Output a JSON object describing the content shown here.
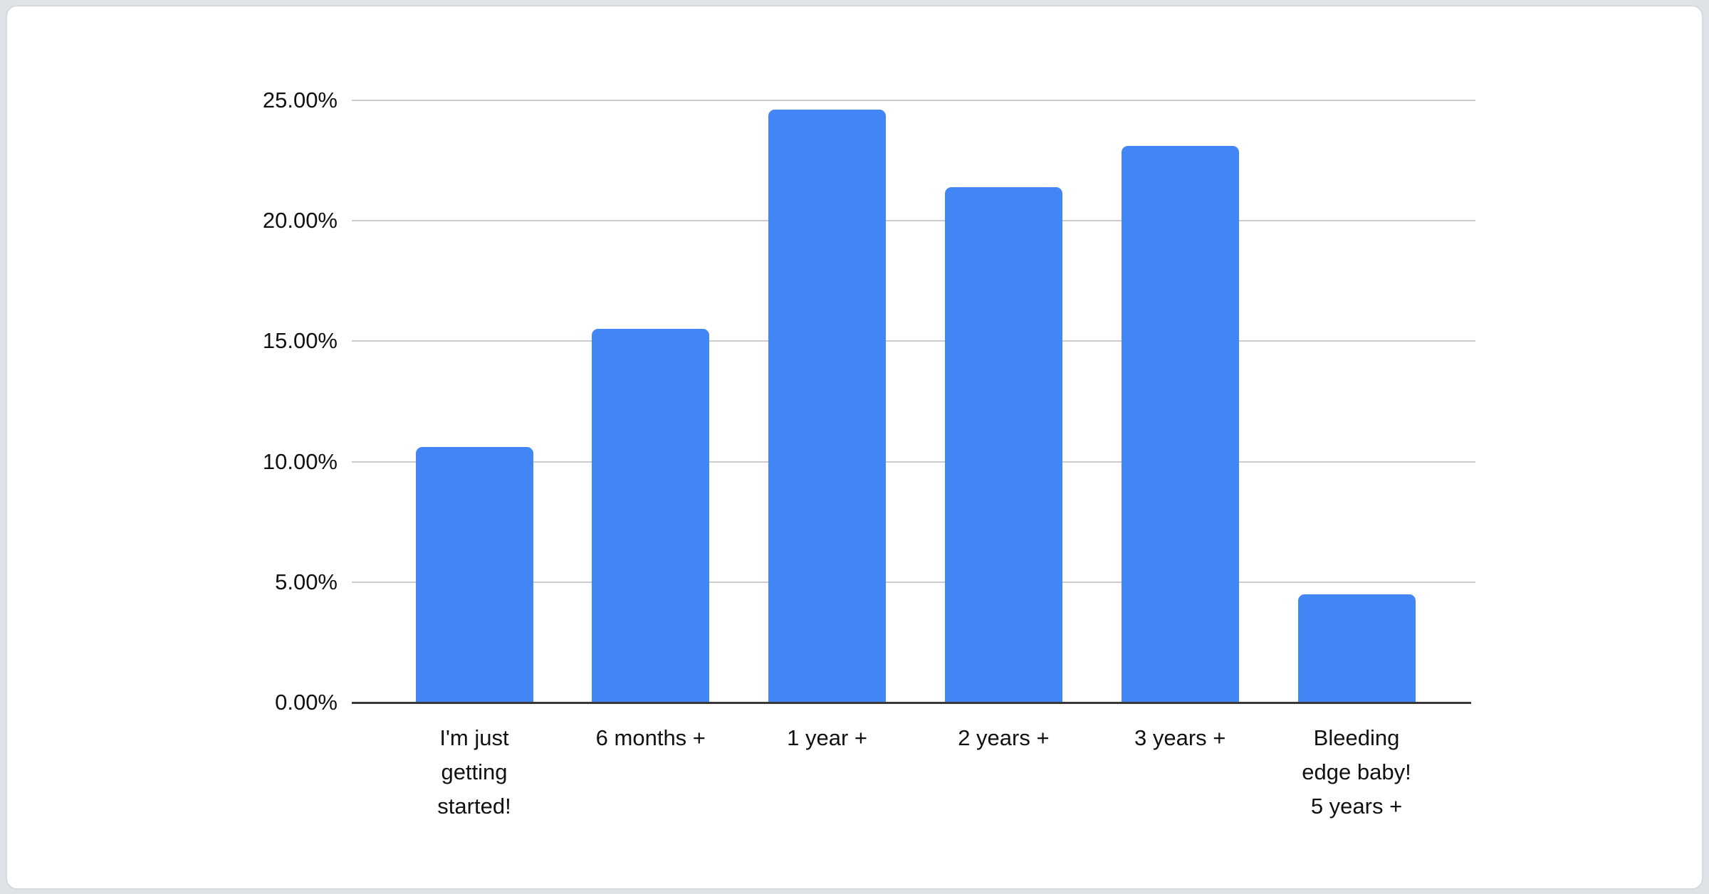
{
  "page": {
    "background_color": "#dfe2e6",
    "card_background_color": "#ffffff",
    "card_border_color": "#d6d9dd"
  },
  "chart_data": {
    "type": "bar",
    "title": "",
    "xlabel": "",
    "ylabel": "",
    "legend": "none",
    "grid": true,
    "categories": [
      "I'm just getting started!",
      "6 months +",
      "1 year +",
      "2 years +",
      "3 years +",
      "Bleeding edge baby! 5 years +"
    ],
    "category_label_lines": [
      [
        "I'm just",
        "getting",
        "started!"
      ],
      [
        "6 months +"
      ],
      [
        "1 year +"
      ],
      [
        "2 years +"
      ],
      [
        "3 years +"
      ],
      [
        "Bleeding",
        "edge baby!",
        "5 years +"
      ]
    ],
    "values": [
      10.6,
      15.5,
      24.6,
      21.4,
      23.1,
      4.5
    ],
    "value_unit": "%",
    "ylim": [
      0,
      25
    ],
    "y_tick_values": [
      0,
      5,
      10,
      15,
      20,
      25
    ],
    "y_tick_labels": [
      "0.00%",
      "5.00%",
      "10.00%",
      "15.00%",
      "20.00%",
      "25.00%"
    ],
    "bar_color": "#4285f4",
    "gridline_color": "#cccccc",
    "axis_line_color": "#383838",
    "text_color": "#111111"
  }
}
